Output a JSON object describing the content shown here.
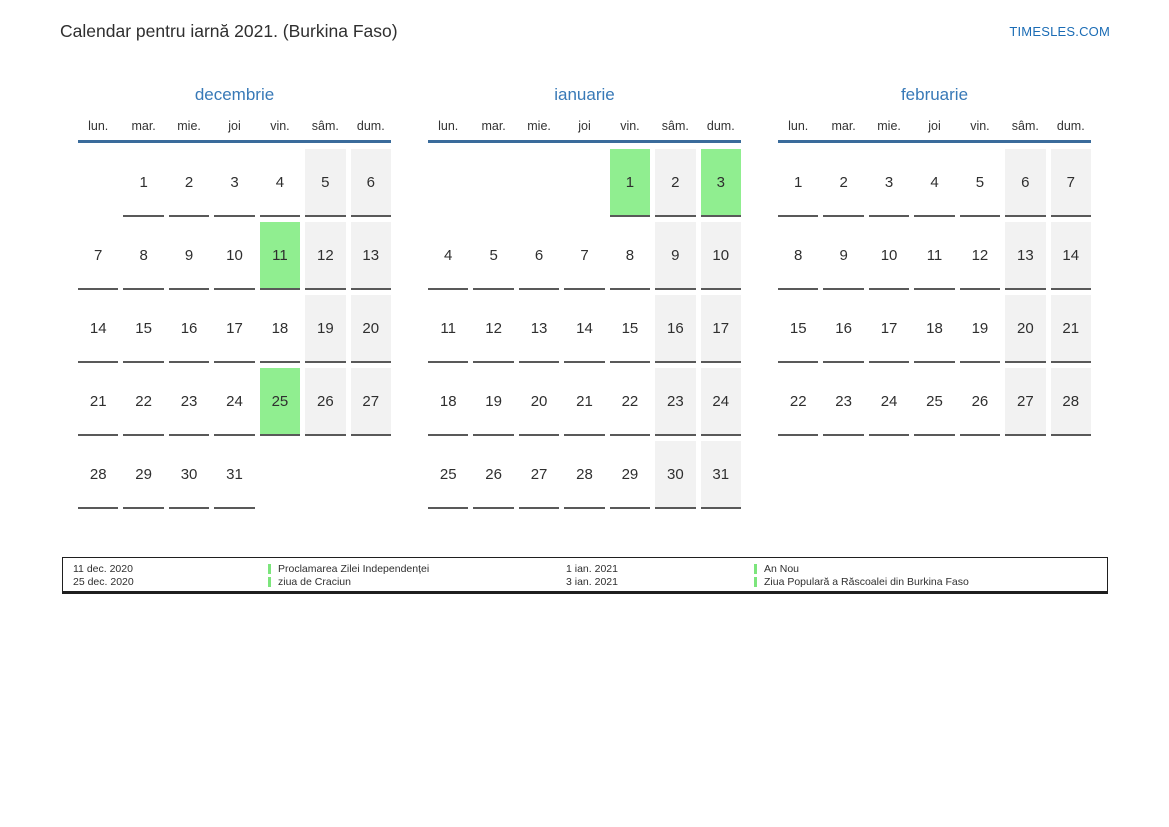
{
  "header": {
    "title": "Calendar pentru iarnă 2021. (Burkina Faso)",
    "site_link": "TIMESLES.COM"
  },
  "colors": {
    "accent_blue": "#3879b7",
    "header_line_blue": "#3a6b9b",
    "link_blue": "#1b6cb5",
    "holiday_green": "#90ee90",
    "weekend_gray": "#f2f2f2",
    "cell_underline": "#595959"
  },
  "weekdays": [
    "lun.",
    "mar.",
    "mie.",
    "joi",
    "vin.",
    "sâm.",
    "dum."
  ],
  "months": [
    {
      "title": "decembrie",
      "cells": [
        {
          "day": "",
          "type": "empty"
        },
        {
          "day": "1",
          "type": "normal"
        },
        {
          "day": "2",
          "type": "normal"
        },
        {
          "day": "3",
          "type": "normal"
        },
        {
          "day": "4",
          "type": "normal"
        },
        {
          "day": "5",
          "type": "weekend"
        },
        {
          "day": "6",
          "type": "weekend"
        },
        {
          "day": "7",
          "type": "normal"
        },
        {
          "day": "8",
          "type": "normal"
        },
        {
          "day": "9",
          "type": "normal"
        },
        {
          "day": "10",
          "type": "normal"
        },
        {
          "day": "11",
          "type": "holiday"
        },
        {
          "day": "12",
          "type": "weekend"
        },
        {
          "day": "13",
          "type": "weekend"
        },
        {
          "day": "14",
          "type": "normal"
        },
        {
          "day": "15",
          "type": "normal"
        },
        {
          "day": "16",
          "type": "normal"
        },
        {
          "day": "17",
          "type": "normal"
        },
        {
          "day": "18",
          "type": "normal"
        },
        {
          "day": "19",
          "type": "weekend"
        },
        {
          "day": "20",
          "type": "weekend"
        },
        {
          "day": "21",
          "type": "normal"
        },
        {
          "day": "22",
          "type": "normal"
        },
        {
          "day": "23",
          "type": "normal"
        },
        {
          "day": "24",
          "type": "normal"
        },
        {
          "day": "25",
          "type": "holiday"
        },
        {
          "day": "26",
          "type": "weekend"
        },
        {
          "day": "27",
          "type": "weekend"
        },
        {
          "day": "28",
          "type": "normal"
        },
        {
          "day": "29",
          "type": "normal"
        },
        {
          "day": "30",
          "type": "normal"
        },
        {
          "day": "31",
          "type": "normal"
        },
        {
          "day": "",
          "type": "empty"
        },
        {
          "day": "",
          "type": "empty"
        },
        {
          "day": "",
          "type": "empty"
        }
      ]
    },
    {
      "title": "ianuarie",
      "cells": [
        {
          "day": "",
          "type": "empty"
        },
        {
          "day": "",
          "type": "empty"
        },
        {
          "day": "",
          "type": "empty"
        },
        {
          "day": "",
          "type": "empty"
        },
        {
          "day": "1",
          "type": "holiday"
        },
        {
          "day": "2",
          "type": "weekend"
        },
        {
          "day": "3",
          "type": "holiday"
        },
        {
          "day": "4",
          "type": "normal"
        },
        {
          "day": "5",
          "type": "normal"
        },
        {
          "day": "6",
          "type": "normal"
        },
        {
          "day": "7",
          "type": "normal"
        },
        {
          "day": "8",
          "type": "normal"
        },
        {
          "day": "9",
          "type": "weekend"
        },
        {
          "day": "10",
          "type": "weekend"
        },
        {
          "day": "11",
          "type": "normal"
        },
        {
          "day": "12",
          "type": "normal"
        },
        {
          "day": "13",
          "type": "normal"
        },
        {
          "day": "14",
          "type": "normal"
        },
        {
          "day": "15",
          "type": "normal"
        },
        {
          "day": "16",
          "type": "weekend"
        },
        {
          "day": "17",
          "type": "weekend"
        },
        {
          "day": "18",
          "type": "normal"
        },
        {
          "day": "19",
          "type": "normal"
        },
        {
          "day": "20",
          "type": "normal"
        },
        {
          "day": "21",
          "type": "normal"
        },
        {
          "day": "22",
          "type": "normal"
        },
        {
          "day": "23",
          "type": "weekend"
        },
        {
          "day": "24",
          "type": "weekend"
        },
        {
          "day": "25",
          "type": "normal"
        },
        {
          "day": "26",
          "type": "normal"
        },
        {
          "day": "27",
          "type": "normal"
        },
        {
          "day": "28",
          "type": "normal"
        },
        {
          "day": "29",
          "type": "normal"
        },
        {
          "day": "30",
          "type": "weekend"
        },
        {
          "day": "31",
          "type": "weekend"
        }
      ]
    },
    {
      "title": "februarie",
      "cells": [
        {
          "day": "1",
          "type": "normal"
        },
        {
          "day": "2",
          "type": "normal"
        },
        {
          "day": "3",
          "type": "normal"
        },
        {
          "day": "4",
          "type": "normal"
        },
        {
          "day": "5",
          "type": "normal"
        },
        {
          "day": "6",
          "type": "weekend"
        },
        {
          "day": "7",
          "type": "weekend"
        },
        {
          "day": "8",
          "type": "normal"
        },
        {
          "day": "9",
          "type": "normal"
        },
        {
          "day": "10",
          "type": "normal"
        },
        {
          "day": "11",
          "type": "normal"
        },
        {
          "day": "12",
          "type": "normal"
        },
        {
          "day": "13",
          "type": "weekend"
        },
        {
          "day": "14",
          "type": "weekend"
        },
        {
          "day": "15",
          "type": "normal"
        },
        {
          "day": "16",
          "type": "normal"
        },
        {
          "day": "17",
          "type": "normal"
        },
        {
          "day": "18",
          "type": "normal"
        },
        {
          "day": "19",
          "type": "normal"
        },
        {
          "day": "20",
          "type": "weekend"
        },
        {
          "day": "21",
          "type": "weekend"
        },
        {
          "day": "22",
          "type": "normal"
        },
        {
          "day": "23",
          "type": "normal"
        },
        {
          "day": "24",
          "type": "normal"
        },
        {
          "day": "25",
          "type": "normal"
        },
        {
          "day": "26",
          "type": "normal"
        },
        {
          "day": "27",
          "type": "weekend"
        },
        {
          "day": "28",
          "type": "weekend"
        }
      ]
    }
  ],
  "legend": {
    "groups": [
      {
        "dates": [
          "11 dec. 2020",
          "25 dec. 2020"
        ],
        "holidays": [
          "Proclamarea Zilei Independenței",
          "ziua de Craciun"
        ]
      },
      {
        "dates": [
          "1 ian. 2021",
          "3 ian. 2021"
        ],
        "holidays": [
          "An Nou",
          "Ziua Populară a Răscoalei din Burkina Faso"
        ]
      }
    ]
  }
}
